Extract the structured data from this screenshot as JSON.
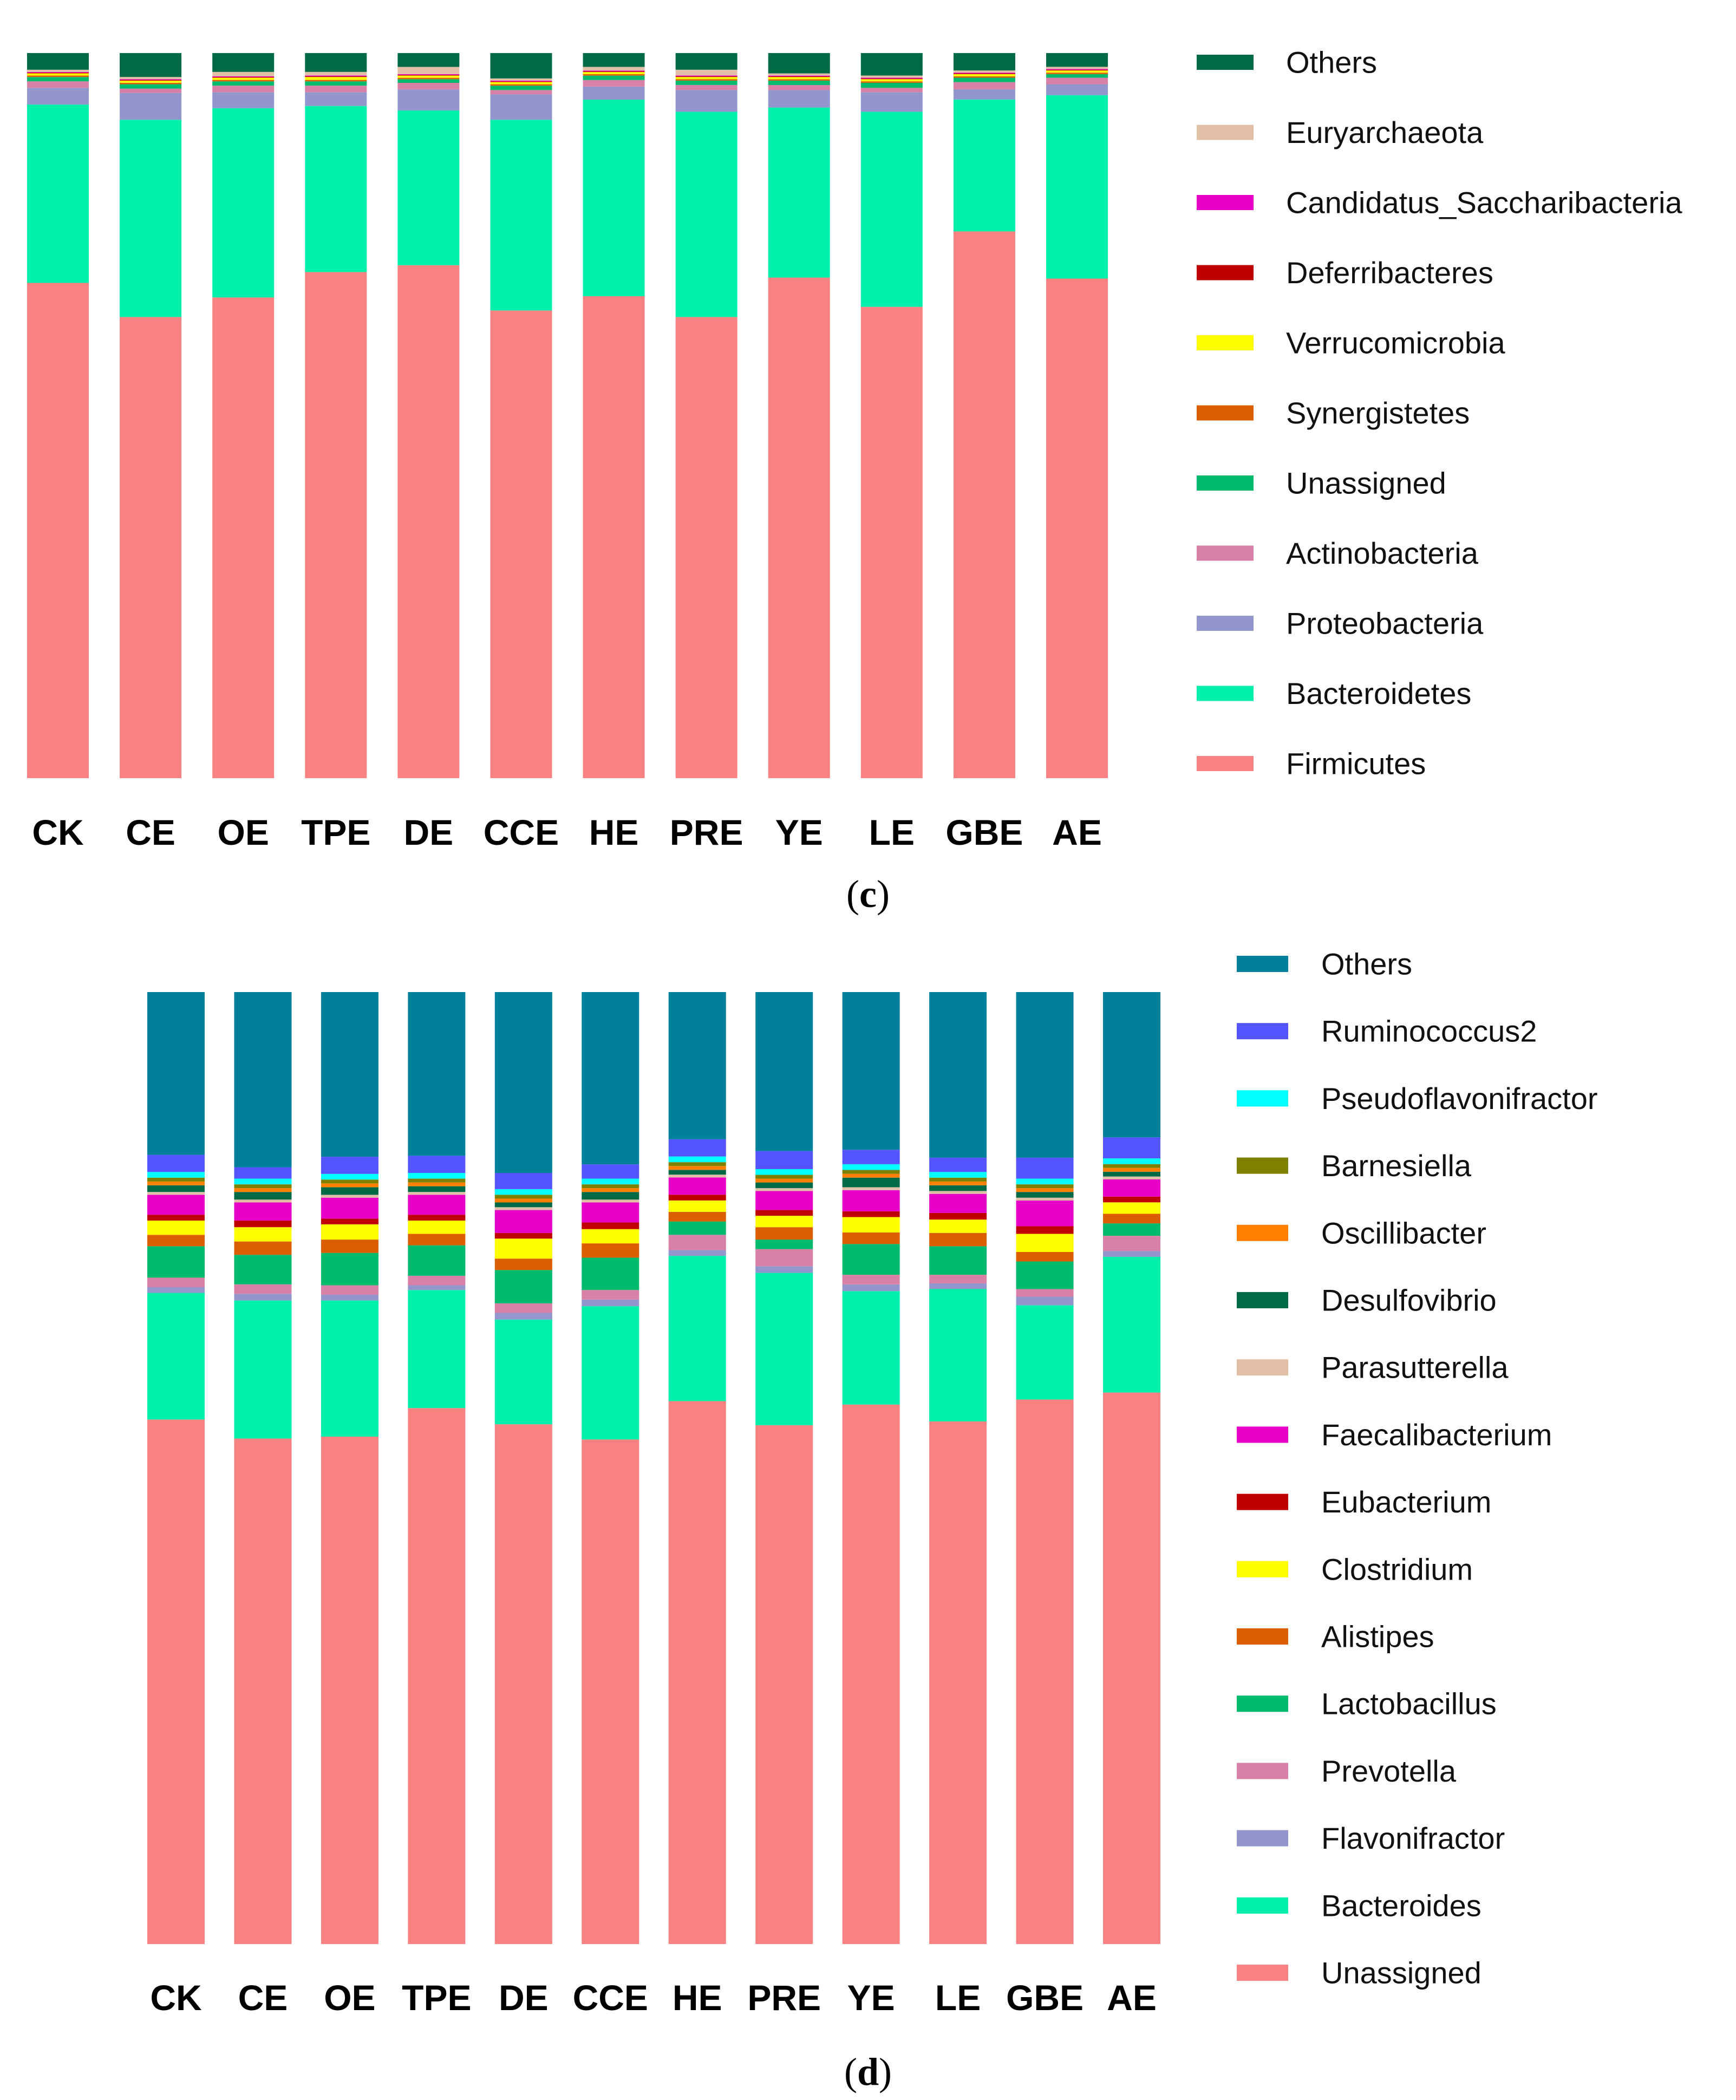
{
  "chart_data": [
    {
      "type": "bar",
      "stacked": true,
      "normalized": true,
      "panel_label": "c",
      "categories": [
        "CK",
        "CE",
        "OE",
        "TPE",
        "DE",
        "CCE",
        "HE",
        "PRE",
        "YE",
        "LE",
        "GBE",
        "AE"
      ],
      "series": [
        {
          "name": "Firmicutes",
          "color": "#F88181",
          "values": [
            68.3,
            63.6,
            66.3,
            69.8,
            70.6,
            64.5,
            66.2,
            63.6,
            68.9,
            65.0,
            75.4,
            68.9
          ]
        },
        {
          "name": "Bacteroidetes",
          "color": "#00F0AC",
          "values": [
            24.6,
            27.2,
            26.1,
            22.9,
            21.3,
            26.3,
            27.0,
            28.3,
            23.4,
            26.9,
            18.2,
            25.3
          ]
        },
        {
          "name": "Proteobacteria",
          "color": "#9296CD",
          "values": [
            2.3,
            3.7,
            2.2,
            1.9,
            2.9,
            3.5,
            1.8,
            3.0,
            2.4,
            2.7,
            1.4,
            1.5
          ]
        },
        {
          "name": "Actinobacteria",
          "color": "#D980A6",
          "values": [
            0.9,
            0.6,
            0.9,
            0.9,
            0.9,
            0.6,
            0.9,
            0.7,
            0.7,
            0.6,
            1.0,
            0.9
          ]
        },
        {
          "name": "Unassigned",
          "color": "#00BA6D",
          "values": [
            0.6,
            0.6,
            0.6,
            0.6,
            0.5,
            0.6,
            0.6,
            0.6,
            0.6,
            0.7,
            0.6,
            0.5
          ]
        },
        {
          "name": "Synergistetes",
          "color": "#DB5E00",
          "values": [
            0.2,
            0.2,
            0.2,
            0.2,
            0.2,
            0.2,
            0.2,
            0.2,
            0.2,
            0.2,
            0.2,
            0.2
          ]
        },
        {
          "name": "Verrucomicrobia",
          "color": "#FFFF00",
          "values": [
            0.3,
            0.3,
            0.3,
            0.4,
            0.3,
            0.3,
            0.3,
            0.3,
            0.3,
            0.3,
            0.3,
            0.3
          ]
        },
        {
          "name": "Deferribacteres",
          "color": "#C00000",
          "values": [
            0.1,
            0.1,
            0.1,
            0.1,
            0.1,
            0.1,
            0.1,
            0.1,
            0.1,
            0.1,
            0.1,
            0.1
          ]
        },
        {
          "name": "Candidatus_Saccharibacteria",
          "color": "#E600C8",
          "values": [
            0.1,
            0.1,
            0.1,
            0.1,
            0.1,
            0.1,
            0.1,
            0.1,
            0.1,
            0.1,
            0.1,
            0.1
          ]
        },
        {
          "name": "Euryarchaeota",
          "color": "#E2C0A8",
          "values": [
            0.3,
            0.3,
            0.6,
            0.5,
            1.0,
            0.3,
            0.5,
            0.8,
            0.3,
            0.3,
            0.3,
            0.3
          ]
        },
        {
          "name": "Others",
          "color": "#006A47",
          "values": [
            2.3,
            3.3,
            2.6,
            2.6,
            1.9,
            3.5,
            1.9,
            2.3,
            2.8,
            3.1,
            2.4,
            1.9
          ]
        }
      ],
      "xlabel": "",
      "ylabel": "",
      "ylim": [
        0,
        100
      ]
    },
    {
      "type": "bar",
      "stacked": true,
      "normalized": true,
      "panel_label": "d",
      "categories": [
        "CK",
        "CE",
        "OE",
        "TPE",
        "DE",
        "CCE",
        "HE",
        "PRE",
        "YE",
        "LE",
        "GBE",
        "AE"
      ],
      "series": [
        {
          "name": "Unassigned",
          "color": "#F88181",
          "values": [
            55.1,
            53.1,
            53.3,
            56.3,
            54.6,
            53.0,
            56.8,
            54.5,
            56.1,
            54.9,
            57.2,
            57.7
          ]
        },
        {
          "name": "Bacteroides",
          "color": "#00F0AC",
          "values": [
            13.3,
            14.5,
            14.3,
            12.4,
            11.0,
            14.0,
            15.2,
            16.0,
            11.8,
            13.9,
            9.9,
            14.2
          ]
        },
        {
          "name": "Flavonifractor",
          "color": "#9296CD",
          "values": [
            0.6,
            0.7,
            0.6,
            0.5,
            0.7,
            0.7,
            0.6,
            0.7,
            0.7,
            0.6,
            0.9,
            0.6
          ]
        },
        {
          "name": "Prevotella",
          "color": "#D980A6",
          "values": [
            1.0,
            1.0,
            1.0,
            1.0,
            1.0,
            1.0,
            1.6,
            1.8,
            1.0,
            0.9,
            0.8,
            1.6
          ]
        },
        {
          "name": "Lactobacillus",
          "color": "#00BA6D",
          "values": [
            3.3,
            3.1,
            3.4,
            3.2,
            3.5,
            3.4,
            1.4,
            1.0,
            3.2,
            3.0,
            2.9,
            1.3
          ]
        },
        {
          "name": "Alistipes",
          "color": "#DB5E00",
          "values": [
            1.2,
            1.4,
            1.4,
            1.2,
            1.2,
            1.5,
            1.0,
            1.3,
            1.2,
            1.4,
            1.0,
            1.0
          ]
        },
        {
          "name": "Clostridium",
          "color": "#FFFF00",
          "values": [
            1.5,
            1.5,
            1.6,
            1.4,
            2.1,
            1.5,
            1.2,
            1.2,
            1.6,
            1.4,
            1.9,
            1.2
          ]
        },
        {
          "name": "Eubacterium",
          "color": "#C00000",
          "values": [
            0.6,
            0.7,
            0.6,
            0.6,
            0.6,
            0.7,
            0.6,
            0.6,
            0.6,
            0.7,
            0.8,
            0.6
          ]
        },
        {
          "name": "Faecalibacterium",
          "color": "#E600C8",
          "values": [
            2.1,
            1.9,
            2.2,
            2.1,
            2.4,
            2.1,
            1.8,
            2.0,
            2.2,
            2.0,
            2.7,
            1.8
          ]
        },
        {
          "name": "Parasutterella",
          "color": "#E2C0A8",
          "values": [
            0.3,
            0.3,
            0.3,
            0.3,
            0.3,
            0.3,
            0.3,
            0.3,
            0.3,
            0.3,
            0.3,
            0.3
          ]
        },
        {
          "name": "Desulfovibrio",
          "color": "#006A47",
          "values": [
            0.7,
            0.8,
            0.8,
            0.6,
            0.5,
            0.8,
            0.5,
            0.6,
            1.0,
            0.6,
            0.6,
            0.5
          ]
        },
        {
          "name": "Oscillibacter",
          "color": "#FF8000",
          "values": [
            0.4,
            0.4,
            0.4,
            0.4,
            0.4,
            0.4,
            0.4,
            0.4,
            0.4,
            0.4,
            0.4,
            0.4
          ]
        },
        {
          "name": "Barnesiella",
          "color": "#808000",
          "values": [
            0.4,
            0.4,
            0.4,
            0.4,
            0.4,
            0.4,
            0.4,
            0.4,
            0.4,
            0.4,
            0.4,
            0.4
          ]
        },
        {
          "name": "Pseudoflavonifractor",
          "color": "#00FFFF",
          "values": [
            0.6,
            0.6,
            0.6,
            0.6,
            0.6,
            0.6,
            0.6,
            0.6,
            0.6,
            0.6,
            0.6,
            0.6
          ]
        },
        {
          "name": "Ruminococcus2",
          "color": "#5555FF",
          "values": [
            1.8,
            1.2,
            1.8,
            1.8,
            1.7,
            1.5,
            1.8,
            1.9,
            1.5,
            1.5,
            2.2,
            2.2
          ]
        },
        {
          "name": "Others",
          "color": "#00809A",
          "values": [
            17.1,
            18.4,
            17.3,
            17.2,
            19.0,
            18.1,
            15.4,
            16.7,
            16.4,
            17.4,
            17.4,
            15.2
          ]
        }
      ],
      "xlabel": "",
      "ylabel": "",
      "ylim": [
        0,
        100
      ]
    }
  ]
}
